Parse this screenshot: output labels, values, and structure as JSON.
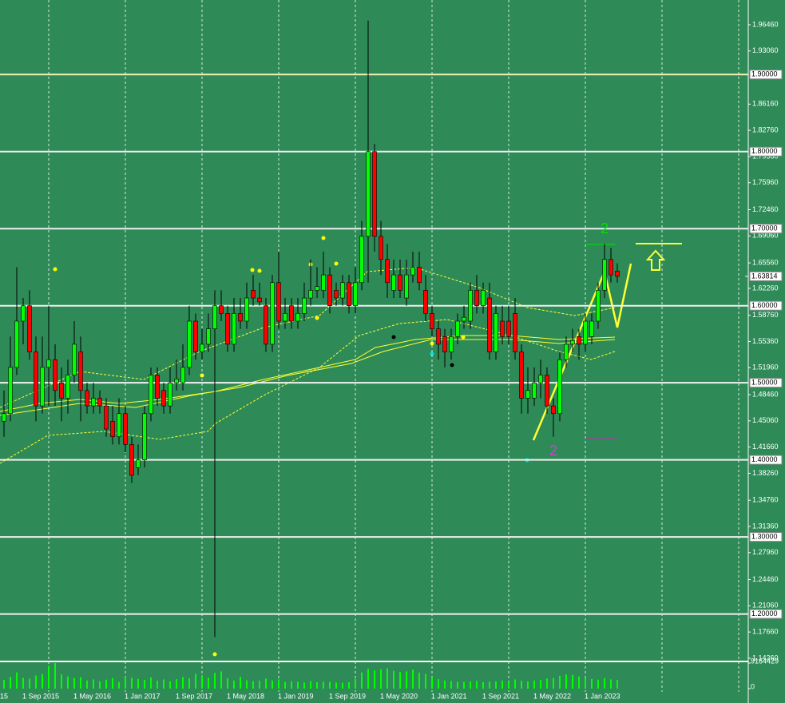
{
  "chart_data": {
    "type": "candlestick",
    "background": "#2e8b57",
    "up_color": "#00ff00",
    "down_color": "#ff0000",
    "clipped_date_label": "15",
    "categories": [
      null,
      null,
      null,
      "1 Sep 2015",
      null,
      null,
      null,
      null,
      null,
      null,
      null,
      "1 May 2016",
      null,
      null,
      null,
      null,
      null,
      null,
      null,
      "1 Jan 2017",
      null,
      null,
      null,
      null,
      null,
      null,
      null,
      "1 Sep 2017",
      null,
      null,
      null,
      null,
      null,
      null,
      null,
      "1 May 2018",
      null,
      null,
      null,
      null,
      null,
      null,
      null,
      "1 Jan 2019",
      null,
      null,
      null,
      null,
      null,
      null,
      null,
      "1 Sep 2019",
      null,
      null,
      null,
      null,
      null,
      null,
      null,
      "1 May 2020",
      null,
      null,
      null,
      null,
      null,
      null,
      null,
      "1 Jan 2021",
      null,
      null,
      null,
      null,
      null,
      null,
      null,
      "1 Sep 2021",
      null,
      null,
      null,
      null,
      null,
      null,
      null,
      "1 May 2022",
      null,
      null,
      null,
      null,
      null,
      null,
      null,
      "1 Jan 2023",
      null,
      null,
      null,
      null,
      null
    ],
    "open": [
      1.45,
      1.46,
      1.52,
      1.58,
      1.6,
      1.54,
      1.47,
      1.52,
      1.53,
      1.5,
      1.48,
      1.51,
      1.54,
      1.49,
      1.47,
      1.48,
      1.47,
      1.45,
      1.43,
      1.46,
      1.42,
      1.39,
      1.4,
      1.46,
      1.51,
      1.49,
      1.47,
      1.5,
      1.5,
      1.52,
      1.58,
      1.54,
      1.55,
      1.57,
      1.6,
      1.59,
      1.55,
      1.59,
      1.58,
      1.62,
      1.61,
      1.6,
      1.55,
      1.63,
      1.58,
      1.6,
      1.58,
      1.59,
      1.61,
      1.62,
      1.62,
      1.64,
      1.62,
      1.61,
      1.63,
      1.6,
      1.63,
      1.69,
      1.8,
      1.69,
      1.66,
      1.62,
      1.64,
      1.61,
      1.64,
      1.65,
      1.62,
      1.59,
      1.57,
      1.56,
      1.54,
      1.56,
      1.58,
      1.58,
      1.62,
      1.6,
      1.61,
      1.54,
      1.58,
      1.58,
      1.59,
      1.54,
      1.48,
      1.48,
      1.5,
      1.51,
      1.47,
      1.46,
      1.53,
      1.55,
      1.56,
      1.55,
      1.56,
      1.58,
      1.62,
      1.66,
      1.645
    ],
    "high": [
      1.49,
      1.56,
      1.65,
      1.61,
      1.62,
      1.56,
      1.56,
      1.6,
      1.55,
      1.52,
      1.53,
      1.58,
      1.56,
      1.5,
      1.5,
      1.49,
      1.48,
      1.47,
      1.48,
      1.47,
      1.43,
      1.42,
      1.47,
      1.52,
      1.52,
      1.5,
      1.52,
      1.53,
      1.55,
      1.6,
      1.59,
      1.57,
      1.59,
      1.62,
      1.62,
      1.6,
      1.61,
      1.61,
      1.63,
      1.64,
      1.63,
      1.61,
      1.64,
      1.67,
      1.61,
      1.61,
      1.61,
      1.63,
      1.66,
      1.65,
      1.67,
      1.65,
      1.63,
      1.64,
      1.64,
      1.65,
      1.71,
      1.97,
      1.81,
      1.71,
      1.68,
      1.66,
      1.66,
      1.66,
      1.67,
      1.67,
      1.64,
      1.6,
      1.58,
      1.57,
      1.57,
      1.59,
      1.6,
      1.63,
      1.64,
      1.63,
      1.63,
      1.6,
      1.6,
      1.6,
      1.61,
      1.55,
      1.52,
      1.52,
      1.53,
      1.52,
      1.48,
      1.54,
      1.56,
      1.57,
      1.57,
      1.59,
      1.59,
      1.63,
      1.68,
      1.675,
      1.655
    ],
    "low": [
      1.43,
      1.45,
      1.51,
      1.55,
      1.53,
      1.45,
      1.46,
      1.47,
      1.47,
      1.45,
      1.46,
      1.5,
      1.45,
      1.46,
      1.46,
      1.46,
      1.43,
      1.42,
      1.42,
      1.41,
      1.37,
      1.38,
      1.39,
      1.45,
      1.47,
      1.46,
      1.46,
      1.49,
      1.49,
      1.51,
      1.53,
      1.53,
      1.54,
      1.17,
      1.58,
      1.54,
      1.54,
      1.57,
      1.57,
      1.6,
      1.6,
      1.54,
      1.54,
      1.57,
      1.57,
      1.57,
      1.57,
      1.58,
      1.6,
      1.61,
      1.61,
      1.59,
      1.6,
      1.6,
      1.59,
      1.59,
      1.62,
      1.63,
      1.67,
      1.64,
      1.61,
      1.61,
      1.61,
      1.6,
      1.63,
      1.62,
      1.58,
      1.56,
      1.53,
      1.52,
      1.53,
      1.55,
      1.57,
      1.57,
      1.59,
      1.59,
      1.53,
      1.53,
      1.55,
      1.55,
      1.53,
      1.46,
      1.46,
      1.47,
      1.48,
      1.46,
      1.43,
      1.45,
      1.52,
      1.54,
      1.53,
      1.54,
      1.55,
      1.57,
      1.61,
      1.63,
      1.63
    ],
    "close": [
      1.46,
      1.52,
      1.58,
      1.6,
      1.54,
      1.47,
      1.52,
      1.53,
      1.49,
      1.48,
      1.51,
      1.55,
      1.49,
      1.47,
      1.48,
      1.47,
      1.44,
      1.43,
      1.46,
      1.42,
      1.38,
      1.4,
      1.46,
      1.51,
      1.48,
      1.47,
      1.5,
      1.505,
      1.52,
      1.58,
      1.54,
      1.55,
      1.57,
      1.6,
      1.59,
      1.55,
      1.59,
      1.58,
      1.61,
      1.61,
      1.605,
      1.55,
      1.63,
      1.58,
      1.59,
      1.58,
      1.59,
      1.61,
      1.62,
      1.625,
      1.64,
      1.6,
      1.61,
      1.63,
      1.6,
      1.63,
      1.69,
      1.8,
      1.69,
      1.66,
      1.63,
      1.64,
      1.62,
      1.64,
      1.65,
      1.63,
      1.59,
      1.57,
      1.55,
      1.54,
      1.56,
      1.58,
      1.585,
      1.62,
      1.6,
      1.62,
      1.54,
      1.59,
      1.56,
      1.56,
      1.54,
      1.48,
      1.49,
      1.5,
      1.51,
      1.47,
      1.46,
      1.53,
      1.55,
      1.555,
      1.55,
      1.58,
      1.58,
      1.62,
      1.66,
      1.64,
      1.63814
    ],
    "volume": [
      3100000,
      4200000,
      5800000,
      3900000,
      3600000,
      4700000,
      5200000,
      8200000,
      9164429,
      5100000,
      4400000,
      3800000,
      4100000,
      2900000,
      3300000,
      2600000,
      3200000,
      3700000,
      2400000,
      4300000,
      3900000,
      3500000,
      3100000,
      4000000,
      2800000,
      3300000,
      2600000,
      3400000,
      4100000,
      3700000,
      5300000,
      4800000,
      3900000,
      5600000,
      6200000,
      3700000,
      2900000,
      4200000,
      3000000,
      2700000,
      2800000,
      3600000,
      2900000,
      3300000,
      2400000,
      2600000,
      2500000,
      2200000,
      2700000,
      2300000,
      2500000,
      2400000,
      2200000,
      2100000,
      2300000,
      3500000,
      5800000,
      7100000,
      6600000,
      6900000,
      7300000,
      6400000,
      5900000,
      6200000,
      6800000,
      5700000,
      5200000,
      4200000,
      3400000,
      2900000,
      2700000,
      2500000,
      2400000,
      2600000,
      2800000,
      2300000,
      2500000,
      2600000,
      2900000,
      2400000,
      3300000,
      2800000,
      2600000,
      2900000,
      3100000,
      3600000,
      3800000,
      4600000,
      5100000,
      4900000,
      4400000,
      3900000,
      3500000,
      3200000,
      3700000,
      3300000,
      3100000
    ],
    "ylim": [
      1.1384,
      1.9967
    ],
    "yticks": [
      {
        "value": 1.9646,
        "label": "1.96460"
      },
      {
        "value": 1.9306,
        "label": "1.93060"
      },
      {
        "value": 1.8616,
        "label": "1.86160"
      },
      {
        "value": 1.8276,
        "label": "1.82760"
      },
      {
        "value": 1.7936,
        "label": "1.79360"
      },
      {
        "value": 1.7596,
        "label": "1.75960"
      },
      {
        "value": 1.7246,
        "label": "1.72460"
      },
      {
        "value": 1.6906,
        "label": "1.69060"
      },
      {
        "value": 1.6556,
        "label": "1.65560"
      },
      {
        "value": 1.6226,
        "label": "1.62260"
      },
      {
        "value": 1.5876,
        "label": "1.58760"
      },
      {
        "value": 1.5536,
        "label": "1.55360"
      },
      {
        "value": 1.5196,
        "label": "1.51960"
      },
      {
        "value": 1.4846,
        "label": "1.48460"
      },
      {
        "value": 1.4506,
        "label": "1.45060"
      },
      {
        "value": 1.4166,
        "label": "1.41660"
      },
      {
        "value": 1.3826,
        "label": "1.38260"
      },
      {
        "value": 1.3476,
        "label": "1.34760"
      },
      {
        "value": 1.3136,
        "label": "1.31360"
      },
      {
        "value": 1.2796,
        "label": "1.27960"
      },
      {
        "value": 1.2446,
        "label": "1.24460"
      },
      {
        "value": 1.2106,
        "label": "1.21060"
      },
      {
        "value": 1.1766,
        "label": "1.17660"
      },
      {
        "value": 1.1426,
        "label": "1.14260"
      }
    ],
    "levels": [
      {
        "value": 1.9,
        "label": "1.90000"
      },
      {
        "value": 1.8,
        "label": "1.80000"
      },
      {
        "value": 1.7,
        "label": "1.70000"
      },
      {
        "value": 1.6,
        "label": "1.60000"
      },
      {
        "value": 1.5,
        "label": "1.50000"
      },
      {
        "value": 1.4,
        "label": "1.40000"
      },
      {
        "value": 1.3,
        "label": "1.30000"
      },
      {
        "value": 1.2,
        "label": "1.20000"
      }
    ],
    "current_price": {
      "value": 1.63814,
      "label": "1.63814"
    },
    "volume_ylim": [
      0,
      9164429
    ],
    "volume_ticks": [
      9164429,
      0
    ],
    "annotations": [
      {
        "text": "2",
        "color": "#00e000"
      },
      {
        "text": "2",
        "color": "#d040d0"
      }
    ]
  }
}
